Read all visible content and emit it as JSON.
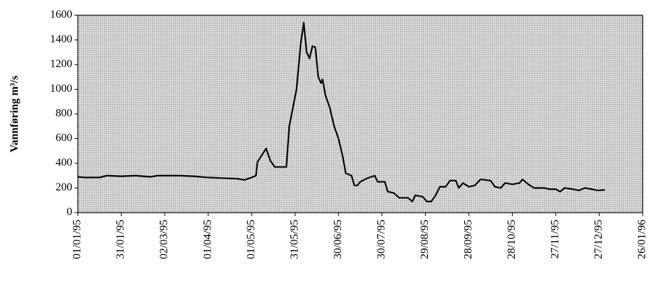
{
  "chart_data": {
    "type": "line",
    "y_label": "Vannføring m³/s",
    "x": [
      "01/01/95",
      "06/01/95",
      "16/01/95",
      "21/01/95",
      "31/01/95",
      "10/02/95",
      "20/02/95",
      "25/02/95",
      "12/03/95",
      "22/03/95",
      "01/04/95",
      "11/04/95",
      "21/04/95",
      "26/04/95",
      "01/05/95",
      "04/05/95",
      "05/05/95",
      "11/05/95",
      "14/05/95",
      "17/05/95",
      "25/05/95",
      "27/05/95",
      "01/06/95",
      "04/06/95",
      "06/06/95",
      "08/06/95",
      "10/06/95",
      "12/06/95",
      "14/06/95",
      "16/06/95",
      "18/06/95",
      "19/06/95",
      "21/06/95",
      "24/06/95",
      "27/06/95",
      "30/06/95",
      "03/07/95",
      "05/07/95",
      "09/07/95",
      "11/07/95",
      "13/07/95",
      "15/07/95",
      "20/07/95",
      "25/07/95",
      "27/07/95",
      "01/08/95",
      "03/08/95",
      "07/08/95",
      "11/08/95",
      "17/08/95",
      "20/08/95",
      "22/08/95",
      "27/08/95",
      "30/08/95",
      "02/09/95",
      "05/09/95",
      "08/09/95",
      "12/09/95",
      "15/09/95",
      "19/09/95",
      "21/09/95",
      "24/09/95",
      "28/09/95",
      "02/10/95",
      "06/10/95",
      "13/10/95",
      "16/10/95",
      "20/10/95",
      "23/10/95",
      "28/10/95",
      "02/11/95",
      "04/11/95",
      "08/11/95",
      "12/11/95",
      "19/11/95",
      "23/11/95",
      "27/11/95",
      "30/11/95",
      "03/12/95",
      "09/12/95",
      "13/12/95",
      "17/12/95",
      "22/12/95",
      "26/12/95",
      "31/12/95"
    ],
    "series": [
      {
        "name": "Vannføring",
        "color": "#000000",
        "values": [
          290,
          285,
          285,
          300,
          295,
          300,
          290,
          300,
          300,
          295,
          285,
          280,
          275,
          265,
          285,
          300,
          410,
          520,
          420,
          370,
          370,
          700,
          1000,
          1380,
          1540,
          1300,
          1250,
          1350,
          1340,
          1100,
          1050,
          1080,
          950,
          850,
          700,
          600,
          450,
          320,
          300,
          220,
          220,
          250,
          280,
          300,
          250,
          250,
          170,
          160,
          120,
          120,
          90,
          140,
          130,
          90,
          90,
          140,
          210,
          210,
          260,
          260,
          200,
          240,
          210,
          220,
          270,
          260,
          210,
          200,
          240,
          230,
          240,
          270,
          230,
          200,
          200,
          190,
          190,
          170,
          200,
          190,
          180,
          200,
          190,
          180,
          185
        ]
      }
    ],
    "xlim": [
      "01/01/95",
      "26/01/96"
    ],
    "xticks": [
      "01/01/95",
      "31/01/95",
      "02/03/95",
      "01/04/95",
      "01/05/95",
      "31/05/95",
      "30/06/95",
      "30/07/95",
      "29/08/95",
      "28/09/95",
      "28/10/95",
      "27/11/95",
      "27/12/95",
      "26/01/96"
    ],
    "ylim": [
      0,
      1600
    ],
    "yticks": [
      0,
      200,
      400,
      600,
      800,
      1000,
      1200,
      1400,
      1600
    ],
    "grid": false
  }
}
